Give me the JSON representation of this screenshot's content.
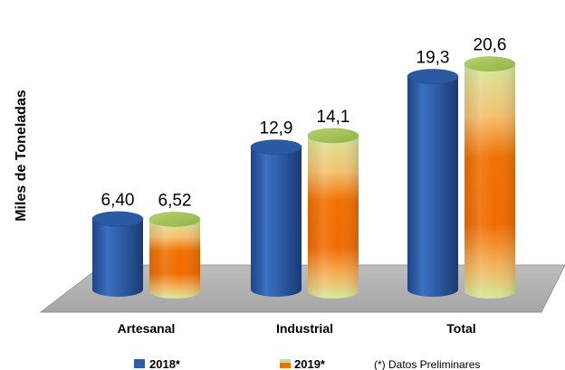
{
  "chart_data": {
    "type": "bar",
    "style": "3d-cylinder",
    "title": "",
    "ylabel": "Miles de Toneladas",
    "xlabel": "",
    "ylim": [
      0,
      22
    ],
    "categories": [
      "Artesanal",
      "Industrial",
      "Total"
    ],
    "series": [
      {
        "name": "2018*",
        "values": [
          6.4,
          12.9,
          19.3
        ],
        "labels": [
          "6,40",
          "12,9",
          "19,3"
        ],
        "color": "#2e5da8"
      },
      {
        "name": "2019*",
        "values": [
          6.52,
          14.1,
          20.6
        ],
        "labels": [
          "6,52",
          "14,1",
          "20,6"
        ],
        "color": "#f07000",
        "color_secondary": "#c8e08a"
      }
    ],
    "note": "(*) Datos Preliminares",
    "grid": false,
    "legend_position": "bottom"
  }
}
